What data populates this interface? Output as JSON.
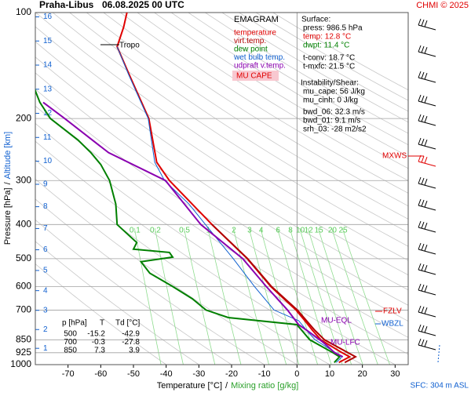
{
  "chart_data": {
    "type": "emagram",
    "station": "Praha-Libus",
    "time": "06.08.2025 00 UTC",
    "source": "CHMI © 2025",
    "legend_title": "EMAGRAM",
    "series": [
      {
        "name": "temperature",
        "color": "#e00000",
        "pressure": [
          986,
          950,
          925,
          850,
          800,
          750,
          700,
          600,
          500,
          400,
          300,
          266,
          200,
          150,
          125,
          110,
          100
        ],
        "values": [
          12.8,
          16.1,
          13.8,
          7.3,
          4.8,
          2.4,
          -0.3,
          -8,
          -15.2,
          -26,
          -39,
          -42.9,
          -45.3,
          -51.3,
          -55,
          -53,
          -52
        ]
      },
      {
        "name": "virt.temp.",
        "color": "#b00000",
        "pressure": [
          986,
          950,
          925,
          850,
          800,
          750,
          700,
          600,
          500,
          400
        ],
        "values": [
          14.6,
          17.9,
          15.6,
          8.4,
          5.5,
          2.9,
          0.1,
          -7.8,
          -15.1,
          -26
        ]
      },
      {
        "name": "dew point",
        "color": "#008000",
        "pressure": [
          986,
          950,
          925,
          850,
          800,
          770,
          735,
          700,
          650,
          600,
          550,
          510,
          495,
          480,
          470,
          450,
          400,
          350,
          300,
          270,
          250,
          230,
          200,
          180,
          165
        ],
        "values": [
          11.4,
          13,
          11,
          3.9,
          1.5,
          0,
          -21,
          -27.8,
          -32,
          -38,
          -45,
          -47.7,
          -38,
          -39,
          -50,
          -49,
          -55,
          -55.4,
          -57.3,
          -60,
          -63,
          -67,
          -75.4,
          -78.6,
          -80.2
        ]
      },
      {
        "name": "wet bulb temp.",
        "color": "#1060d0",
        "pressure": [
          986,
          950,
          850,
          800,
          750,
          700,
          600,
          500,
          400,
          350,
          300,
          266,
          200,
          150,
          125
        ],
        "values": [
          12,
          13.8,
          5.5,
          3,
          0.5,
          -7,
          -13,
          -19.5,
          -28,
          -33,
          -40.5,
          -43.5,
          -45.5,
          -51.5,
          -55
        ]
      },
      {
        "name": "udpraft v.temp.",
        "color": "#8a00b0",
        "pressure": [
          950,
          925,
          880,
          860,
          800,
          770,
          700,
          600,
          500,
          400,
          300,
          250,
          200,
          180
        ],
        "values": [
          14,
          11.5,
          9,
          7.7,
          3.1,
          0.5,
          -2.9,
          -9.4,
          -16.6,
          -29.4,
          -40.2,
          -57.6,
          -71,
          -77.6
        ]
      }
    ],
    "cape_label": "MU CAPE",
    "xlim": [
      -80,
      34
    ],
    "xticks": [
      -70,
      -60,
      -50,
      -40,
      -30,
      -20,
      -10,
      0,
      10,
      20,
      30
    ],
    "ylim": [
      1000,
      100
    ],
    "ylog": true,
    "yticks": [
      100,
      200,
      300,
      400,
      500,
      600,
      700,
      850,
      925,
      1000
    ],
    "altitude_ticks": [
      1,
      2,
      3,
      4,
      5,
      6,
      7,
      8,
      9,
      10,
      11,
      12,
      13,
      14,
      15,
      16
    ],
    "mixing_ratio_lines": [
      0.1,
      0.2,
      0.5,
      1,
      2,
      3,
      4,
      6,
      8,
      10,
      12,
      15,
      20,
      25
    ],
    "x_label": "Temperature [°C]",
    "x_label_2": "Mixing ratio [g/kg]",
    "y_label": "Pressure [hPa]",
    "y_label_2": "Altitude [km]",
    "label_separator": "/",
    "annotations": [
      "Tropo",
      "MU-EQL",
      "MU-LFC",
      "FZLV",
      "WBZL",
      "MXWS",
      "SFC: 304 m ASL"
    ],
    "info": [
      "Surface:",
      "press: 986.5 hPa",
      "temp: 12.8 °C",
      "dwpt: 11.4 °C",
      "t-conv: 18.7 °C",
      "t-mxfc: 21.5 °C",
      "Instability/Shear:",
      "mu_cape: 56 J/kg",
      "mu_cinh: 0 J/kg",
      "bwd_06: 32.3 m/s",
      "bwd_01: 9.1 m/s",
      "srh_03: -28 m2/s2"
    ],
    "table": {
      "columns": [
        "p [hPa]",
        "T",
        "Td [°C]"
      ],
      "rows": [
        [
          500,
          -15.2,
          -42.9
        ],
        [
          700,
          -0.3,
          -27.8
        ],
        [
          850,
          7.3,
          3.9
        ]
      ]
    }
  }
}
